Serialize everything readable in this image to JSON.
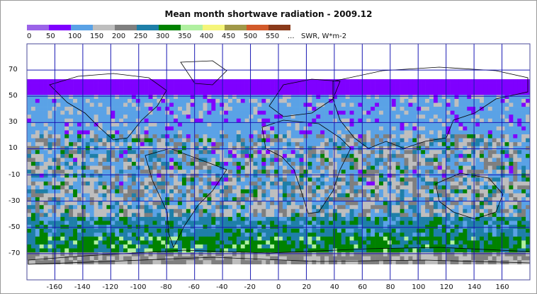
{
  "title": "Mean month shortwave radiation - 2009.12",
  "legend": {
    "units": "SWR, W*m-2",
    "items": [
      {
        "label": "0",
        "color": "#9b63e8"
      },
      {
        "label": "50",
        "color": "#7f00ff"
      },
      {
        "label": "100",
        "color": "#5aa2e6"
      },
      {
        "label": "150",
        "color": "#bebebe"
      },
      {
        "label": "200",
        "color": "#7f7f7f"
      },
      {
        "label": "250",
        "color": "#1e7fa8"
      },
      {
        "label": "300",
        "color": "#008200"
      },
      {
        "label": "350",
        "color": "#b0f0a0"
      },
      {
        "label": "400",
        "color": "#f5f57a"
      },
      {
        "label": "450",
        "color": "#a09848"
      },
      {
        "label": "500",
        "color": "#d25a2a"
      },
      {
        "label": "550",
        "color": "#8a3a1a"
      },
      {
        "label": "...",
        "color": ""
      }
    ]
  },
  "chart_data": {
    "type": "heatmap",
    "title": "Mean month shortwave radiation - 2009.12",
    "xlabel": "",
    "ylabel": "",
    "xlim": [
      -180,
      180
    ],
    "ylim": [
      -90,
      90
    ],
    "xticks": [
      -160,
      -140,
      -120,
      -100,
      -80,
      -60,
      -40,
      -20,
      0,
      20,
      40,
      60,
      80,
      100,
      120,
      140,
      160
    ],
    "yticks": [
      70,
      50,
      30,
      10,
      -10,
      -30,
      -50,
      -70
    ],
    "grid": true,
    "grid_color": "#1a1ab4",
    "colorbar_units": "SWR, W*m-2",
    "colorbar_bounds": [
      0,
      50,
      100,
      150,
      200,
      250,
      300,
      350,
      400,
      450,
      500,
      550
    ],
    "zonal_bands": [
      {
        "lat_from": 90,
        "lat_to": 60,
        "category": "no data"
      },
      {
        "lat_from": 60,
        "lat_to": 48,
        "category": "50-100"
      },
      {
        "lat_from": 48,
        "lat_to": 20,
        "category": "100-150"
      },
      {
        "lat_from": 20,
        "lat_to": -20,
        "category": "mixed 100-250"
      },
      {
        "lat_from": -20,
        "lat_to": -45,
        "category": "150-250"
      },
      {
        "lat_from": -45,
        "lat_to": -60,
        "category": "250-300"
      },
      {
        "lat_from": -60,
        "lat_to": -70,
        "category": "300-350"
      },
      {
        "lat_from": -70,
        "lat_to": -80,
        "category": "150-250"
      },
      {
        "lat_from": -80,
        "lat_to": -90,
        "category": "no data"
      }
    ]
  }
}
